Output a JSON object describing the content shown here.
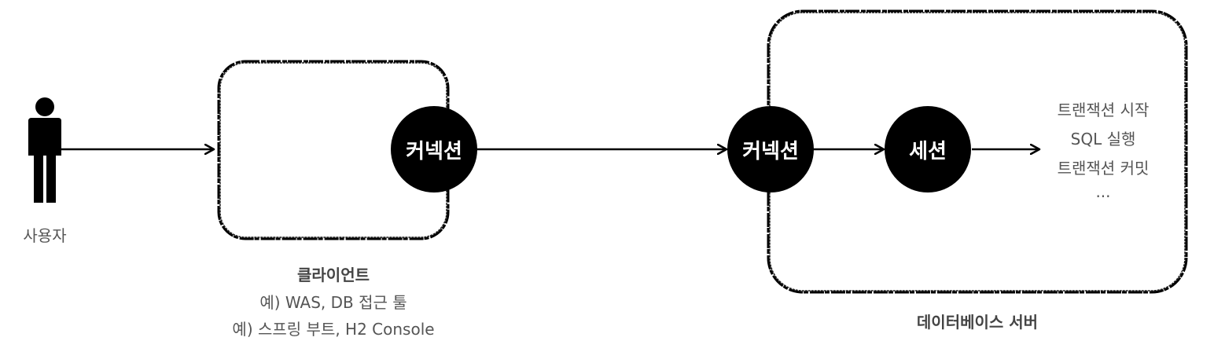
{
  "user": {
    "label": "사용자"
  },
  "client": {
    "title": "클라이언트",
    "lines": [
      "예) WAS, DB 접근 툴",
      "예) 스프링 부트, H2 Console"
    ],
    "connection_label": "커넥션"
  },
  "server": {
    "title": "데이터베이스 서버",
    "connection_label": "커넥션",
    "session_label": "세션",
    "steps": [
      "트랜잭션 시작",
      "SQL 실행",
      "트랜잭션 커밋",
      "..."
    ]
  },
  "colors": {
    "stroke": "#000000",
    "text": "#555555",
    "circle": "#000000"
  }
}
